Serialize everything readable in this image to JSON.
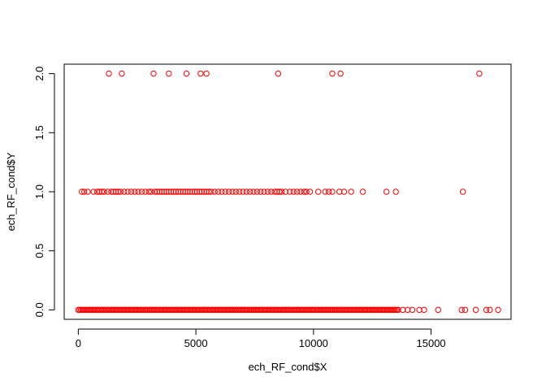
{
  "chart_data": {
    "type": "scatter",
    "title": "",
    "xlabel": "ech_RF_cond$X",
    "ylabel": "ech_RF_cond$Y",
    "xlim": [
      -600,
      18400
    ],
    "ylim": [
      -0.08,
      2.08
    ],
    "x_ticks": [
      0,
      5000,
      10000,
      15000
    ],
    "x_tick_labels": [
      "0",
      "5000",
      "10000",
      "15000"
    ],
    "y_ticks": [
      0.0,
      0.5,
      1.0,
      1.5,
      2.0
    ],
    "y_tick_labels": [
      "0.0",
      "0.5",
      "1.0",
      "1.5",
      "2.0"
    ],
    "grid": false,
    "point_color": "#ff0000",
    "marker": "open-circle",
    "series": [
      {
        "points": [
          [
            1300,
            2
          ],
          [
            1850,
            2
          ],
          [
            3200,
            2
          ],
          [
            3850,
            2
          ],
          [
            4600,
            2
          ],
          [
            5200,
            2
          ],
          [
            5450,
            2
          ],
          [
            8500,
            2
          ],
          [
            10800,
            2
          ],
          [
            11150,
            2
          ],
          [
            17050,
            2
          ],
          [
            150,
            1
          ],
          [
            250,
            1
          ],
          [
            400,
            1
          ],
          [
            650,
            1
          ],
          [
            800,
            1
          ],
          [
            900,
            1
          ],
          [
            1000,
            1
          ],
          [
            1100,
            1
          ],
          [
            1250,
            1
          ],
          [
            1400,
            1
          ],
          [
            1500,
            1
          ],
          [
            1600,
            1
          ],
          [
            1700,
            1
          ],
          [
            1800,
            1
          ],
          [
            1950,
            1
          ],
          [
            2100,
            1
          ],
          [
            2250,
            1
          ],
          [
            2400,
            1
          ],
          [
            2550,
            1
          ],
          [
            2700,
            1
          ],
          [
            2850,
            1
          ],
          [
            3000,
            1
          ],
          [
            3100,
            1
          ],
          [
            3250,
            1
          ],
          [
            3350,
            1
          ],
          [
            3450,
            1
          ],
          [
            3550,
            1
          ],
          [
            3650,
            1
          ],
          [
            3750,
            1
          ],
          [
            3850,
            1
          ],
          [
            3950,
            1
          ],
          [
            4050,
            1
          ],
          [
            4150,
            1
          ],
          [
            4250,
            1
          ],
          [
            4350,
            1
          ],
          [
            4450,
            1
          ],
          [
            4550,
            1
          ],
          [
            4650,
            1
          ],
          [
            4750,
            1
          ],
          [
            4850,
            1
          ],
          [
            4950,
            1
          ],
          [
            5050,
            1
          ],
          [
            5150,
            1
          ],
          [
            5250,
            1
          ],
          [
            5350,
            1
          ],
          [
            5450,
            1
          ],
          [
            5550,
            1
          ],
          [
            5650,
            1
          ],
          [
            5800,
            1
          ],
          [
            5950,
            1
          ],
          [
            6100,
            1
          ],
          [
            6250,
            1
          ],
          [
            6400,
            1
          ],
          [
            6550,
            1
          ],
          [
            6700,
            1
          ],
          [
            6850,
            1
          ],
          [
            7000,
            1
          ],
          [
            7150,
            1
          ],
          [
            7300,
            1
          ],
          [
            7450,
            1
          ],
          [
            7600,
            1
          ],
          [
            7750,
            1
          ],
          [
            7900,
            1
          ],
          [
            8050,
            1
          ],
          [
            8200,
            1
          ],
          [
            8350,
            1
          ],
          [
            8450,
            1
          ],
          [
            8550,
            1
          ],
          [
            8650,
            1
          ],
          [
            8800,
            1
          ],
          [
            9000,
            1
          ],
          [
            9150,
            1
          ],
          [
            9300,
            1
          ],
          [
            9450,
            1
          ],
          [
            9600,
            1
          ],
          [
            9700,
            1
          ],
          [
            9850,
            1
          ],
          [
            10200,
            1
          ],
          [
            10500,
            1
          ],
          [
            10650,
            1
          ],
          [
            10800,
            1
          ],
          [
            11100,
            1
          ],
          [
            11300,
            1
          ],
          [
            11600,
            1
          ],
          [
            12100,
            1
          ],
          [
            13100,
            1
          ],
          [
            13500,
            1
          ],
          [
            16350,
            1
          ],
          [
            15300,
            0
          ],
          [
            16300,
            0
          ],
          [
            16450,
            0
          ],
          [
            16900,
            0
          ],
          [
            17350,
            0
          ],
          [
            17500,
            0
          ],
          [
            17850,
            0
          ],
          [
            13800,
            0
          ],
          [
            14000,
            0
          ],
          [
            14200,
            0
          ],
          [
            14500,
            0
          ],
          [
            14700,
            0
          ]
        ],
        "dense_rows": [
          {
            "y": 0,
            "x_from": 0,
            "x_to": 13600
          }
        ]
      }
    ]
  }
}
